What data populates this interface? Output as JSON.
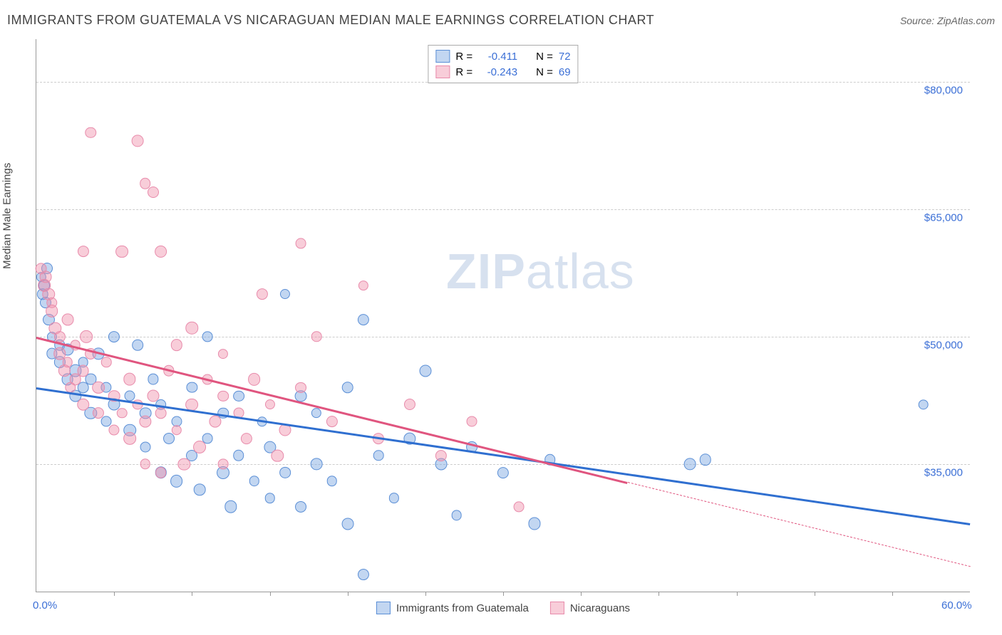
{
  "header": {
    "title": "IMMIGRANTS FROM GUATEMALA VS NICARAGUAN MEDIAN MALE EARNINGS CORRELATION CHART",
    "source_prefix": "Source: ",
    "source_name": "ZipAtlas.com"
  },
  "chart": {
    "type": "scatter",
    "ylabel": "Median Male Earnings",
    "xlim": [
      0,
      60
    ],
    "ylim": [
      20000,
      85000
    ],
    "x_tick_labels": [
      {
        "x": 0,
        "label": "0.0%"
      },
      {
        "x": 60,
        "label": "60.0%"
      }
    ],
    "x_minor_ticks": [
      5,
      10,
      15,
      20,
      25,
      30,
      35,
      40,
      45,
      50,
      55
    ],
    "y_gridlines": [
      {
        "y": 80000,
        "label": "$80,000"
      },
      {
        "y": 65000,
        "label": "$65,000"
      },
      {
        "y": 50000,
        "label": "$50,000"
      },
      {
        "y": 35000,
        "label": "$35,000"
      }
    ],
    "grid_color": "#cccccc",
    "background_color": "#ffffff",
    "axis_color": "#999999",
    "watermark": "ZIPatlas",
    "series": [
      {
        "name": "Immigrants from Guatemala",
        "fill_color": "rgba(120,165,225,0.45)",
        "stroke_color": "#5b8fd6",
        "line_color": "#2f6fd0",
        "r_value": "-0.411",
        "n_value": "72",
        "trend": {
          "x1": 0,
          "y1": 44000,
          "x2": 60,
          "y2": 28000,
          "dashed_from_x": null
        },
        "points": [
          [
            0.3,
            57000
          ],
          [
            0.5,
            56000
          ],
          [
            0.4,
            55000
          ],
          [
            0.6,
            54000
          ],
          [
            0.8,
            52000
          ],
          [
            1,
            50000
          ],
          [
            1,
            48000
          ],
          [
            1.5,
            47000
          ],
          [
            1.5,
            49000
          ],
          [
            2,
            48500
          ],
          [
            2,
            45000
          ],
          [
            2.5,
            46000
          ],
          [
            2.5,
            43000
          ],
          [
            3,
            44000
          ],
          [
            3,
            47000
          ],
          [
            3.5,
            45000
          ],
          [
            3.5,
            41000
          ],
          [
            4,
            48000
          ],
          [
            4.5,
            44000
          ],
          [
            4.5,
            40000
          ],
          [
            5,
            42000
          ],
          [
            5,
            50000
          ],
          [
            6,
            43000
          ],
          [
            6,
            39000
          ],
          [
            6.5,
            49000
          ],
          [
            7,
            41000
          ],
          [
            7,
            37000
          ],
          [
            7.5,
            45000
          ],
          [
            8,
            42000
          ],
          [
            8,
            34000
          ],
          [
            8.5,
            38000
          ],
          [
            9,
            40000
          ],
          [
            9,
            33000
          ],
          [
            10,
            44000
          ],
          [
            10,
            36000
          ],
          [
            10.5,
            32000
          ],
          [
            11,
            50000
          ],
          [
            11,
            38000
          ],
          [
            12,
            41000
          ],
          [
            12,
            34000
          ],
          [
            12.5,
            30000
          ],
          [
            13,
            43000
          ],
          [
            13,
            36000
          ],
          [
            14,
            33000
          ],
          [
            14.5,
            40000
          ],
          [
            15,
            31000
          ],
          [
            15,
            37000
          ],
          [
            16,
            55000
          ],
          [
            16,
            34000
          ],
          [
            17,
            43000
          ],
          [
            17,
            30000
          ],
          [
            18,
            41000
          ],
          [
            18,
            35000
          ],
          [
            19,
            33000
          ],
          [
            20,
            44000
          ],
          [
            20,
            28000
          ],
          [
            21,
            22000
          ],
          [
            21,
            52000
          ],
          [
            22,
            36000
          ],
          [
            23,
            31000
          ],
          [
            24,
            38000
          ],
          [
            25,
            46000
          ],
          [
            26,
            35000
          ],
          [
            27,
            29000
          ],
          [
            28,
            37000
          ],
          [
            30,
            34000
          ],
          [
            32,
            28000
          ],
          [
            33,
            35500
          ],
          [
            42,
            35000
          ],
          [
            43,
            35500
          ],
          [
            57,
            42000
          ],
          [
            0.7,
            58000
          ]
        ]
      },
      {
        "name": "Nicaraguans",
        "fill_color": "rgba(240,145,170,0.45)",
        "stroke_color": "#e88bab",
        "line_color": "#e0557f",
        "r_value": "-0.243",
        "n_value": "69",
        "trend": {
          "x1": 0,
          "y1": 50000,
          "x2": 60,
          "y2": 23000,
          "dashed_from_x": 38
        },
        "points": [
          [
            0.3,
            58000
          ],
          [
            0.5,
            56000
          ],
          [
            0.8,
            55000
          ],
          [
            1,
            54000
          ],
          [
            1,
            53000
          ],
          [
            1.2,
            51000
          ],
          [
            1.5,
            50000
          ],
          [
            1.5,
            48000
          ],
          [
            2,
            52000
          ],
          [
            2,
            47000
          ],
          [
            2.5,
            49000
          ],
          [
            2.5,
            45000
          ],
          [
            3,
            60000
          ],
          [
            3,
            46000
          ],
          [
            3,
            42000
          ],
          [
            3.5,
            74000
          ],
          [
            3.5,
            48000
          ],
          [
            4,
            44000
          ],
          [
            4,
            41000
          ],
          [
            4.5,
            47000
          ],
          [
            5,
            43000
          ],
          [
            5,
            39000
          ],
          [
            5.5,
            60000
          ],
          [
            5.5,
            41000
          ],
          [
            6,
            45000
          ],
          [
            6,
            38000
          ],
          [
            6.5,
            73000
          ],
          [
            6.5,
            42000
          ],
          [
            7,
            68000
          ],
          [
            7,
            40000
          ],
          [
            7,
            35000
          ],
          [
            7.5,
            67000
          ],
          [
            7.5,
            43000
          ],
          [
            8,
            60000
          ],
          [
            8,
            41000
          ],
          [
            8,
            34000
          ],
          [
            8.5,
            46000
          ],
          [
            9,
            49000
          ],
          [
            9,
            39000
          ],
          [
            9.5,
            35000
          ],
          [
            10,
            51000
          ],
          [
            10,
            42000
          ],
          [
            10.5,
            37000
          ],
          [
            11,
            45000
          ],
          [
            11.5,
            40000
          ],
          [
            12,
            48000
          ],
          [
            12,
            43000
          ],
          [
            12,
            35000
          ],
          [
            13,
            41000
          ],
          [
            13.5,
            38000
          ],
          [
            14,
            45000
          ],
          [
            14.5,
            55000
          ],
          [
            15,
            42000
          ],
          [
            15.5,
            36000
          ],
          [
            16,
            39000
          ],
          [
            17,
            61000
          ],
          [
            17,
            44000
          ],
          [
            18,
            50000
          ],
          [
            19,
            40000
          ],
          [
            21,
            56000
          ],
          [
            22,
            38000
          ],
          [
            24,
            42000
          ],
          [
            26,
            36000
          ],
          [
            28,
            40000
          ],
          [
            31,
            30000
          ],
          [
            0.6,
            57000
          ],
          [
            1.8,
            46000
          ],
          [
            2.2,
            44000
          ],
          [
            3.2,
            50000
          ]
        ]
      }
    ],
    "legend_top": {
      "r_label": "R =",
      "n_label": "N ="
    }
  }
}
